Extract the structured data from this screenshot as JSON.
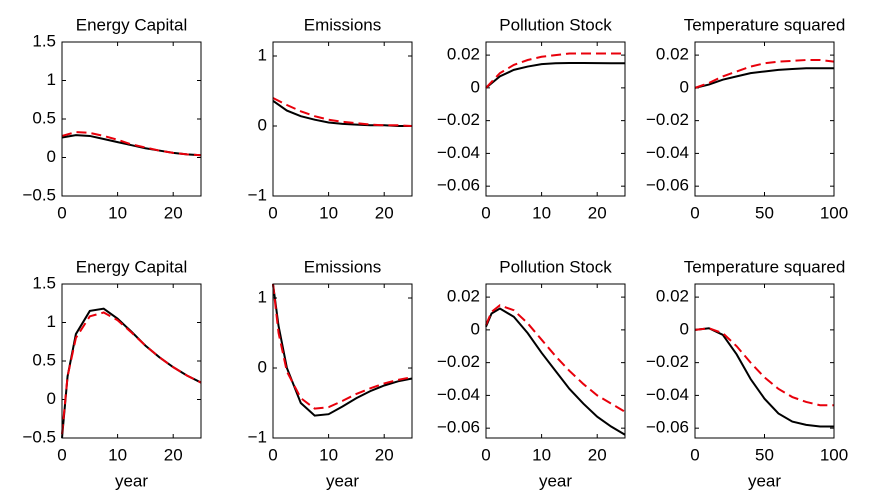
{
  "chart_data": [
    {
      "type": "line",
      "title": "Energy Capital",
      "x": [
        0,
        2.5,
        5,
        7.5,
        10,
        12.5,
        15,
        17.5,
        20,
        22.5,
        25
      ],
      "series": [
        {
          "color": "#000000",
          "linestyle": "solid",
          "values": [
            0.26,
            0.29,
            0.28,
            0.24,
            0.2,
            0.16,
            0.12,
            0.09,
            0.06,
            0.04,
            0.03
          ]
        },
        {
          "color": "#e8000b",
          "linestyle": "dashed",
          "values": [
            0.28,
            0.33,
            0.32,
            0.28,
            0.23,
            0.17,
            0.13,
            0.09,
            0.06,
            0.04,
            0.03
          ]
        }
      ],
      "xlim": [
        0,
        25
      ],
      "xticks": [
        0,
        10,
        20
      ],
      "ylim": [
        -0.5,
        1.5
      ],
      "yticks": [
        {
          "value": -0.5,
          "label": "−0.5"
        },
        0,
        0.5,
        1,
        1.5
      ]
    },
    {
      "type": "line",
      "title": "Emissions",
      "x": [
        0,
        2.5,
        5,
        7.5,
        10,
        12.5,
        15,
        17.5,
        20,
        22.5,
        25
      ],
      "series": [
        {
          "color": "#000000",
          "linestyle": "solid",
          "values": [
            0.36,
            0.22,
            0.14,
            0.09,
            0.05,
            0.03,
            0.02,
            0.01,
            0.01,
            0,
            0
          ]
        },
        {
          "color": "#e8000b",
          "linestyle": "dashed",
          "values": [
            0.4,
            0.3,
            0.21,
            0.14,
            0.09,
            0.06,
            0.04,
            0.02,
            0.01,
            0.01,
            0
          ]
        }
      ],
      "xlim": [
        0,
        25
      ],
      "xticks": [
        0,
        10,
        20
      ],
      "ylim": [
        -1,
        1.2
      ],
      "yticks": [
        {
          "value": -1,
          "label": "−1"
        },
        0,
        1
      ]
    },
    {
      "type": "line",
      "title": "Pollution Stock",
      "x": [
        0,
        2.5,
        5,
        7.5,
        10,
        12.5,
        15,
        17.5,
        20,
        22.5,
        25
      ],
      "series": [
        {
          "color": "#000000",
          "linestyle": "solid",
          "values": [
            0,
            0.007,
            0.011,
            0.013,
            0.0145,
            0.015,
            0.0152,
            0.0152,
            0.0151,
            0.015,
            0.015
          ]
        },
        {
          "color": "#e8000b",
          "linestyle": "dashed",
          "values": [
            0,
            0.009,
            0.014,
            0.017,
            0.019,
            0.02,
            0.021,
            0.021,
            0.021,
            0.021,
            0.021
          ]
        }
      ],
      "xlim": [
        0,
        25
      ],
      "xticks": [
        0,
        10,
        20
      ],
      "ylim": [
        -0.066,
        0.028
      ],
      "yticks": [
        {
          "value": -0.06,
          "label": "−0.06"
        },
        {
          "value": -0.04,
          "label": "−0.04"
        },
        {
          "value": -0.02,
          "label": "−0.02"
        },
        0,
        0.02
      ]
    },
    {
      "type": "line",
      "title": "Temperature squared",
      "x": [
        0,
        10,
        20,
        30,
        40,
        50,
        60,
        70,
        80,
        90,
        100
      ],
      "series": [
        {
          "color": "#000000",
          "linestyle": "solid",
          "values": [
            0,
            0.002,
            0.005,
            0.007,
            0.009,
            0.01,
            0.011,
            0.0115,
            0.012,
            0.012,
            0.012
          ]
        },
        {
          "color": "#e8000b",
          "linestyle": "dashed",
          "values": [
            0,
            0.003,
            0.007,
            0.01,
            0.013,
            0.015,
            0.016,
            0.0165,
            0.017,
            0.017,
            0.016
          ]
        }
      ],
      "xlim": [
        0,
        100
      ],
      "xticks": [
        0,
        50,
        100
      ],
      "ylim": [
        -0.066,
        0.028
      ],
      "yticks": [
        {
          "value": -0.06,
          "label": "−0.06"
        },
        {
          "value": -0.04,
          "label": "−0.04"
        },
        {
          "value": -0.02,
          "label": "−0.02"
        },
        0,
        0.02
      ]
    },
    {
      "type": "line",
      "title": "Energy Capital",
      "xlabel": "year",
      "x": [
        0,
        1,
        2.5,
        5,
        7.5,
        10,
        12.5,
        15,
        17.5,
        20,
        22.5,
        25
      ],
      "series": [
        {
          "color": "#000000",
          "linestyle": "solid",
          "values": [
            -0.5,
            0.3,
            0.85,
            1.15,
            1.18,
            1.05,
            0.88,
            0.7,
            0.55,
            0.42,
            0.31,
            0.22
          ]
        },
        {
          "color": "#e8000b",
          "linestyle": "dashed",
          "values": [
            -0.45,
            0.3,
            0.8,
            1.08,
            1.13,
            1.03,
            0.87,
            0.7,
            0.55,
            0.42,
            0.31,
            0.22
          ]
        }
      ],
      "xlim": [
        0,
        25
      ],
      "xticks": [
        0,
        10,
        20
      ],
      "ylim": [
        -0.5,
        1.5
      ],
      "yticks": [
        {
          "value": -0.5,
          "label": "−0.5"
        },
        0,
        0.5,
        1,
        1.5
      ]
    },
    {
      "type": "line",
      "title": "Emissions",
      "xlabel": "year",
      "x": [
        0,
        1,
        2.5,
        5,
        7.5,
        10,
        12.5,
        15,
        17.5,
        20,
        22.5,
        25
      ],
      "series": [
        {
          "color": "#000000",
          "linestyle": "solid",
          "values": [
            1.2,
            0.6,
            0,
            -0.5,
            -0.68,
            -0.66,
            -0.55,
            -0.43,
            -0.33,
            -0.25,
            -0.19,
            -0.15
          ]
        },
        {
          "color": "#e8000b",
          "linestyle": "dashed",
          "values": [
            1.2,
            0.5,
            -0.05,
            -0.43,
            -0.58,
            -0.56,
            -0.47,
            -0.37,
            -0.29,
            -0.22,
            -0.17,
            -0.13
          ]
        }
      ],
      "xlim": [
        0,
        25
      ],
      "xticks": [
        0,
        10,
        20
      ],
      "ylim": [
        -1,
        1.2
      ],
      "yticks": [
        {
          "value": -1,
          "label": "−1"
        },
        0,
        1
      ]
    },
    {
      "type": "line",
      "title": "Pollution Stock",
      "xlabel": "year",
      "x": [
        0,
        1,
        2.5,
        5,
        7.5,
        10,
        12.5,
        15,
        17.5,
        20,
        22.5,
        25
      ],
      "series": [
        {
          "color": "#000000",
          "linestyle": "solid",
          "values": [
            0.002,
            0.01,
            0.013,
            0.008,
            -0.002,
            -0.014,
            -0.025,
            -0.036,
            -0.045,
            -0.053,
            -0.059,
            -0.064
          ]
        },
        {
          "color": "#e8000b",
          "linestyle": "dashed",
          "values": [
            0.003,
            0.011,
            0.015,
            0.012,
            0.004,
            -0.006,
            -0.016,
            -0.025,
            -0.033,
            -0.04,
            -0.045,
            -0.05
          ]
        }
      ],
      "xlim": [
        0,
        25
      ],
      "xticks": [
        0,
        10,
        20
      ],
      "ylim": [
        -0.066,
        0.028
      ],
      "yticks": [
        {
          "value": -0.06,
          "label": "−0.06"
        },
        {
          "value": -0.04,
          "label": "−0.04"
        },
        {
          "value": -0.02,
          "label": "−0.02"
        },
        0,
        0.02
      ]
    },
    {
      "type": "line",
      "title": "Temperature squared",
      "xlabel": "year",
      "x": [
        0,
        10,
        20,
        30,
        40,
        50,
        60,
        70,
        80,
        90,
        100
      ],
      "series": [
        {
          "color": "#000000",
          "linestyle": "solid",
          "values": [
            0,
            0.001,
            -0.003,
            -0.015,
            -0.03,
            -0.042,
            -0.051,
            -0.056,
            -0.058,
            -0.059,
            -0.059
          ]
        },
        {
          "color": "#e8000b",
          "linestyle": "dashed",
          "values": [
            0,
            0.001,
            -0.002,
            -0.01,
            -0.02,
            -0.029,
            -0.036,
            -0.041,
            -0.044,
            -0.046,
            -0.046
          ]
        }
      ],
      "xlim": [
        0,
        100
      ],
      "xticks": [
        0,
        50,
        100
      ],
      "ylim": [
        -0.066,
        0.028
      ],
      "yticks": [
        {
          "value": -0.06,
          "label": "−0.06"
        },
        {
          "value": -0.04,
          "label": "−0.04"
        },
        {
          "value": -0.02,
          "label": "−0.02"
        },
        0,
        0.02
      ]
    }
  ]
}
